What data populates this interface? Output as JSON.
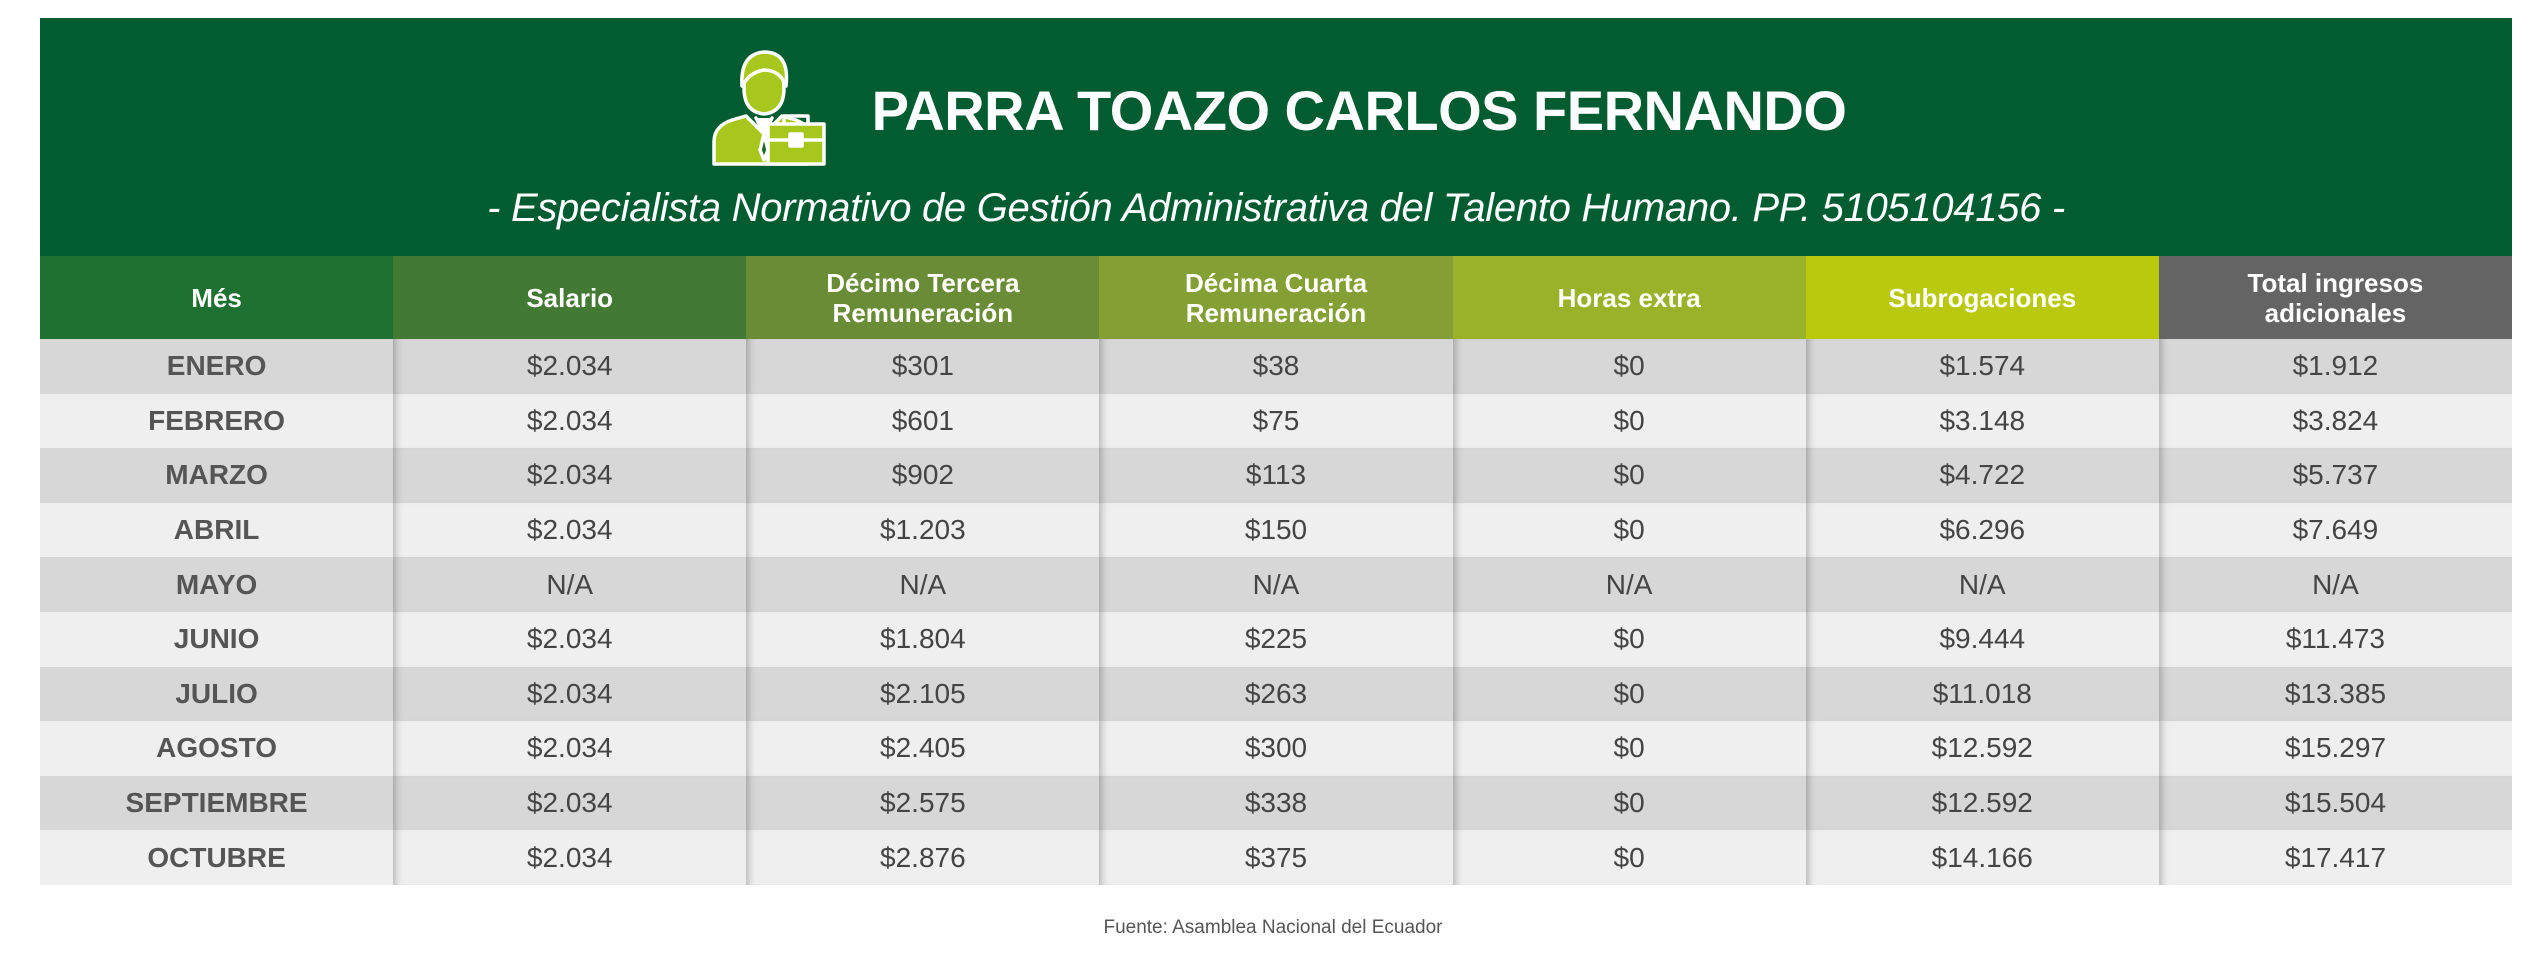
{
  "header": {
    "name": "PARRA TOAZO CARLOS FERNANDO",
    "subtitle": "- Especialista Normativo de Gestión Administrativa del Talento Humano. PP. 5105104156 -",
    "icon": "businessman-briefcase-icon"
  },
  "colors": {
    "banner": "#025c31",
    "icon_fill": "#a8c71c",
    "row_dark": "#d7d7d7",
    "row_light": "#efefef"
  },
  "table": {
    "columns": [
      "Més",
      "Salario",
      "Décimo Tercera\nRemuneración",
      "Décima Cuarta\nRemuneración",
      "Horas extra",
      "Subrogaciones",
      "Total ingresos\nadicionales"
    ],
    "rows": [
      [
        "ENERO",
        "$2.034",
        "$301",
        "$38",
        "$0",
        "$1.574",
        "$1.912"
      ],
      [
        "FEBRERO",
        "$2.034",
        "$601",
        "$75",
        "$0",
        "$3.148",
        "$3.824"
      ],
      [
        "MARZO",
        "$2.034",
        "$902",
        "$113",
        "$0",
        "$4.722",
        "$5.737"
      ],
      [
        "ABRIL",
        "$2.034",
        "$1.203",
        "$150",
        "$0",
        "$6.296",
        "$7.649"
      ],
      [
        "MAYO",
        "N/A",
        "N/A",
        "N/A",
        "N/A",
        "N/A",
        "N/A"
      ],
      [
        "JUNIO",
        "$2.034",
        "$1.804",
        "$225",
        "$0",
        "$9.444",
        "$11.473"
      ],
      [
        "JULIO",
        "$2.034",
        "$2.105",
        "$263",
        "$0",
        "$11.018",
        "$13.385"
      ],
      [
        "AGOSTO",
        "$2.034",
        "$2.405",
        "$300",
        "$0",
        "$12.592",
        "$15.297"
      ],
      [
        "SEPTIEMBRE",
        "$2.034",
        "$2.575",
        "$338",
        "$0",
        "$12.592",
        "$15.504"
      ],
      [
        "OCTUBRE",
        "$2.034",
        "$2.876",
        "$375",
        "$0",
        "$14.166",
        "$17.417"
      ]
    ]
  },
  "footer": {
    "source": "Fuente: Asamblea Nacional del Ecuador"
  }
}
